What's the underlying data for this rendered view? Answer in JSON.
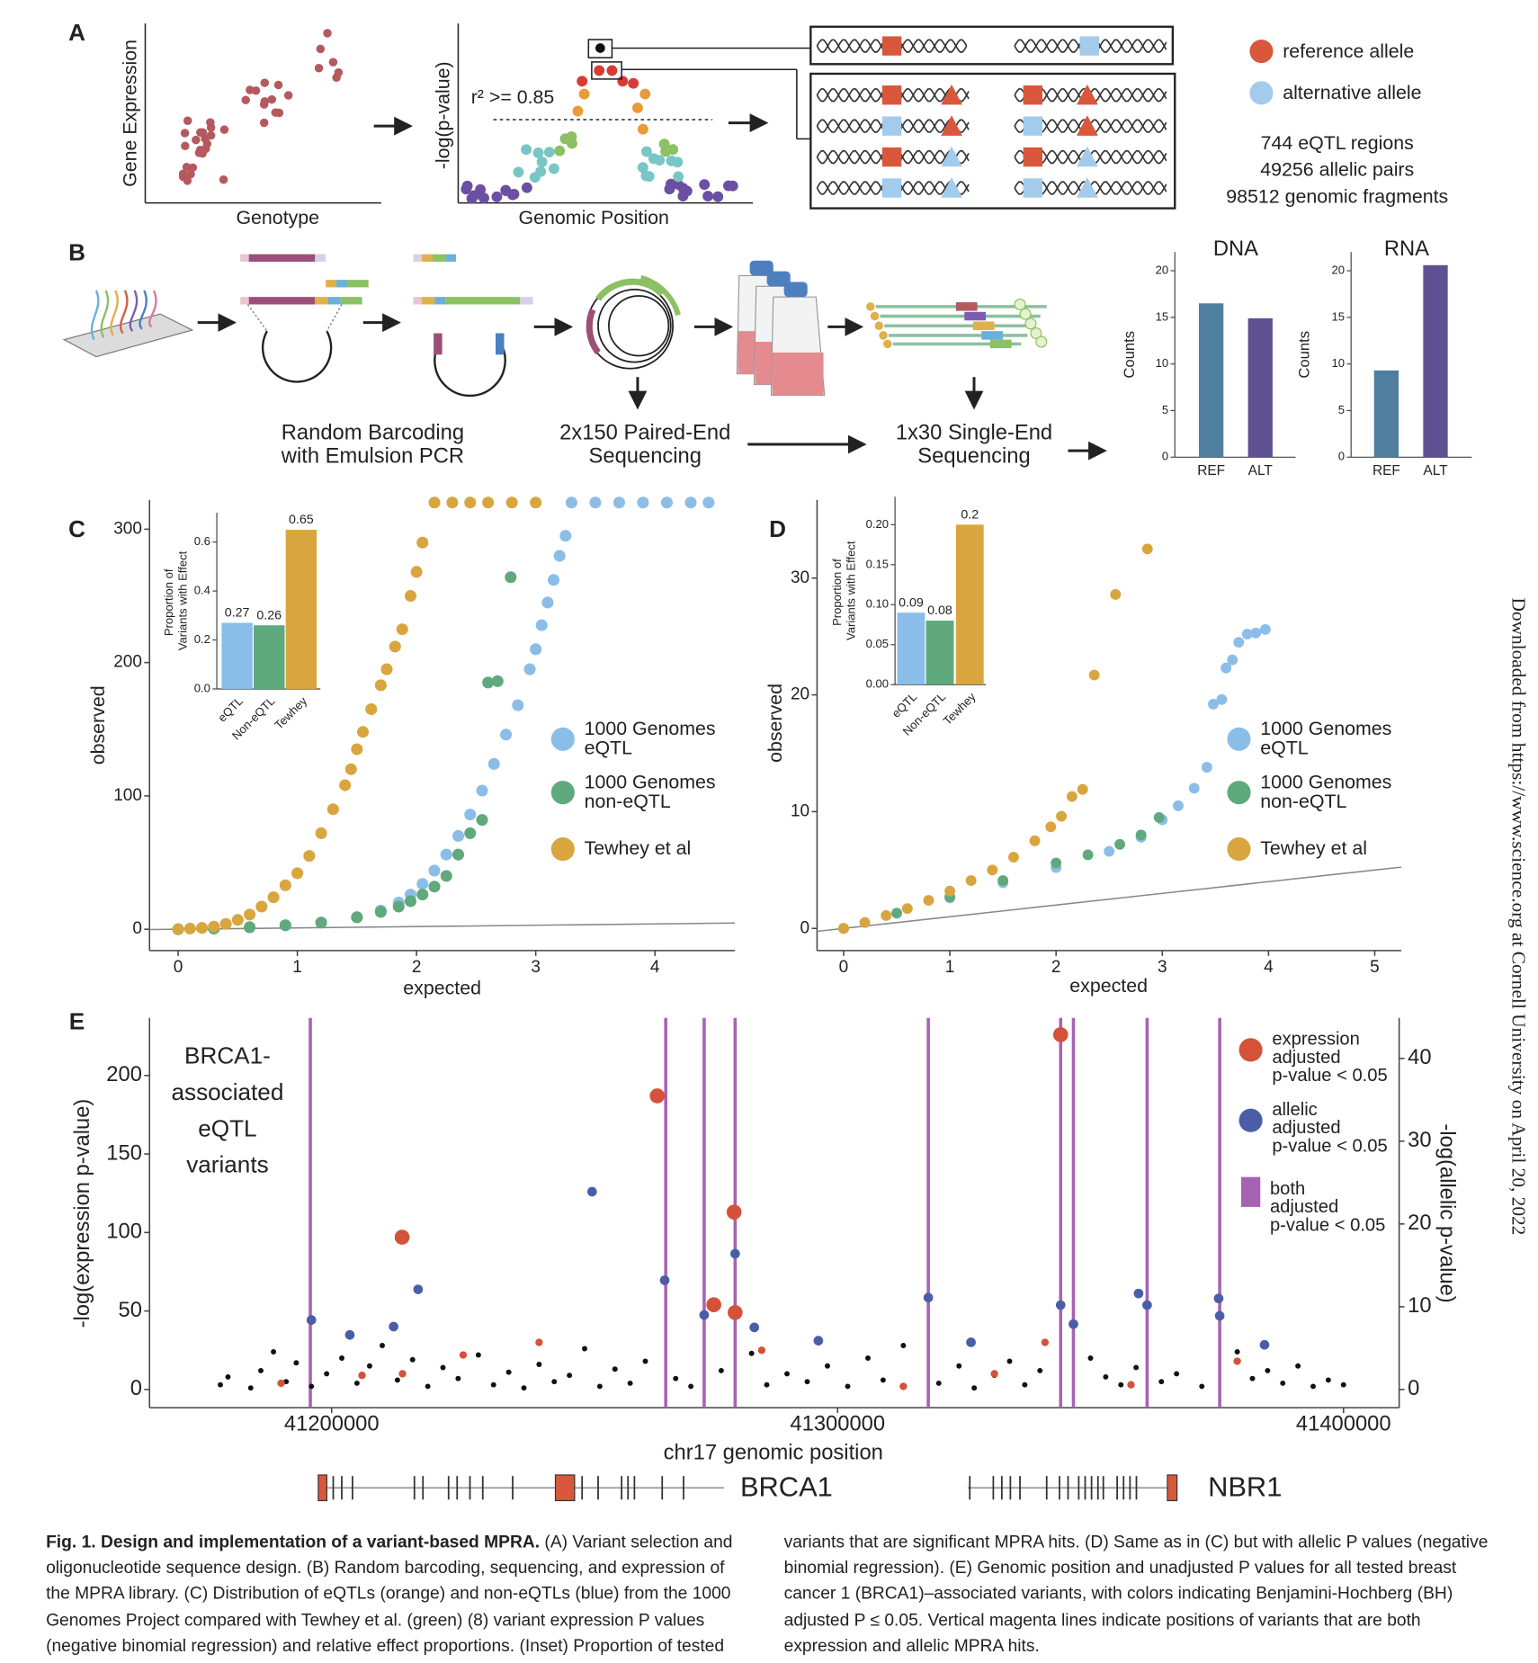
{
  "figure": {
    "panel_labels": [
      "A",
      "B",
      "C",
      "D",
      "E"
    ],
    "panel_a": {
      "scatter_x_label": "Genotype",
      "scatter_y_label": "Gene Expression",
      "manhattan_x_label": "Genomic Position",
      "manhattan_y_label": "-log(p-value)",
      "threshold_label": "r² >= 0.85",
      "legend": [
        "reference allele",
        "alternative allele"
      ],
      "stats": [
        "744 eQTL regions",
        "49256 allelic pairs",
        "98512 genomic fragments"
      ]
    },
    "panel_b": {
      "steps": [
        [
          "Random Barcoding",
          "with Emulsion PCR"
        ],
        [
          "2x150 Paired-End",
          "Sequencing"
        ],
        [
          "1x30 Single-End",
          "Sequencing"
        ]
      ]
    },
    "panel_e": {
      "annotation": [
        "BRCA1-",
        "associated",
        "eQTL",
        "variants"
      ],
      "genes": [
        "BRCA1",
        "NBR1"
      ]
    },
    "caption": {
      "title": "Fig. 1. Design and implementation of a variant-based MPRA.",
      "body": "(A) Variant selection and oligonucleotide sequence design. (B) Random barcoding, sequencing, and expression of the MPRA library. (C) Distribution of eQTLs (orange) and non-eQTLs (blue) from the 1000 Genomes Project compared with Tewhey et al. (green) (8) variant expression P values (negative binomial regression) and relative effect proportions. (Inset) Proportion of tested variants that are significant MPRA hits. (D) Same as in (C) but with allelic P values (negative binomial regression). (E) Genomic position and unadjusted P values for all tested breast cancer 1 (BRCA1)–associated variants, with colors indicating Benjamini-Hochberg (BH) adjusted P ≤ 0.05. Vertical magenta lines indicate positions of variants that are both expression and allelic MPRA hits."
    },
    "download_note": "Downloaded from https://www.science.org at Cornell University on April 20, 2022"
  },
  "chart_data": [
    {
      "type": "bar",
      "title": "DNA",
      "y_label": "Counts",
      "categories": [
        "REF",
        "ALT"
      ],
      "values": [
        16.5,
        14.9
      ],
      "colors": [
        "#4f7f9e",
        "#5f5191"
      ],
      "ylim": [
        0,
        22
      ],
      "yticks": [
        0,
        5,
        10,
        15,
        20
      ],
      "data_labels": false
    },
    {
      "type": "bar",
      "title": "RNA",
      "y_label": "Counts",
      "categories": [
        "REF",
        "ALT"
      ],
      "values": [
        9.3,
        20.6
      ],
      "colors": [
        "#4f7f9e",
        "#5f5191"
      ],
      "ylim": [
        0,
        22
      ],
      "yticks": [
        0,
        5,
        10,
        15,
        20
      ],
      "data_labels": false
    },
    {
      "type": "scatter",
      "x_label": "expected",
      "y_label": "observed",
      "xlim": [
        -0.24,
        4.67
      ],
      "ylim": [
        -16,
        322
      ],
      "xticks": [
        0,
        1,
        2,
        3,
        4
      ],
      "yticks": [
        0,
        100,
        200,
        300
      ],
      "diagonal": true,
      "legend": "right",
      "series": [
        {
          "name": "1000 Genomes eQTL",
          "color": "#8bbde9",
          "x": [
            0,
            0.3,
            0.6,
            0.9,
            1.2,
            1.5,
            1.7,
            1.85,
            1.95,
            2.05,
            2.15,
            2.25,
            2.35,
            2.45,
            2.55,
            2.65,
            2.75,
            2.85,
            2.95,
            3.0,
            3.05,
            3.1,
            3.15,
            3.2,
            3.25,
            3.3,
            3.5,
            3.7,
            3.9,
            4.1,
            4.3,
            4.45
          ],
          "values": [
            0,
            0.5,
            1.5,
            3,
            5,
            9,
            14,
            20,
            26,
            34,
            44,
            56,
            70,
            86,
            104,
            124,
            146,
            168,
            195,
            210,
            228,
            245,
            262,
            280,
            295,
            320,
            320,
            320,
            320,
            320,
            320,
            320
          ]
        },
        {
          "name": "1000 Genomes non-eQTL",
          "color": "#5fa97c",
          "x": [
            0,
            0.3,
            0.6,
            0.9,
            1.2,
            1.5,
            1.7,
            1.85,
            1.95,
            2.05,
            2.15,
            2.25,
            2.35,
            2.45,
            2.55,
            2.6,
            2.68,
            2.79
          ],
          "values": [
            0,
            0.5,
            1.5,
            3,
            5,
            9,
            13,
            17,
            21,
            26,
            32,
            40,
            56,
            72,
            82,
            185,
            186,
            264
          ]
        },
        {
          "name": "Tewhey et al",
          "color": "#d8a53f",
          "x": [
            0,
            0.1,
            0.2,
            0.3,
            0.4,
            0.5,
            0.6,
            0.7,
            0.8,
            0.9,
            1.0,
            1.1,
            1.2,
            1.3,
            1.4,
            1.45,
            1.5,
            1.55,
            1.62,
            1.7,
            1.75,
            1.82,
            1.88,
            1.95,
            2.0,
            2.05,
            2.15,
            2.3,
            2.45,
            2.6,
            2.8,
            3.0
          ],
          "values": [
            0,
            0.5,
            1,
            2,
            4,
            7,
            11,
            17,
            24,
            33,
            42,
            55,
            72,
            90,
            108,
            120,
            135,
            148,
            165,
            183,
            195,
            212,
            225,
            250,
            268,
            290,
            320,
            320,
            320,
            320,
            320,
            320
          ]
        }
      ]
    },
    {
      "type": "bar",
      "y_label": "Proportion of Variants with Effect",
      "categories": [
        "eQTL",
        "Non-eQTL",
        "Tewhey"
      ],
      "values": [
        0.27,
        0.26,
        0.65
      ],
      "colors": [
        "#8bbde9",
        "#5fa97c",
        "#d8a53f"
      ],
      "ylim": [
        0,
        0.72
      ],
      "yticks": [
        {
          "value": 0,
          "label": "0.0"
        },
        0.2,
        0.4,
        0.6
      ],
      "data_labels": true
    },
    {
      "type": "scatter",
      "x_label": "expected",
      "y_label": "observed",
      "xlim": [
        -0.25,
        5.25
      ],
      "ylim": [
        -1.9,
        36.7
      ],
      "xticks": [
        0,
        1,
        2,
        3,
        4,
        5
      ],
      "yticks": [
        0,
        10,
        20,
        30
      ],
      "diagonal": true,
      "legend": "right",
      "series": [
        {
          "name": "1000 Genomes eQTL",
          "color": "#8bbde9",
          "x": [
            0,
            0.5,
            1.0,
            1.5,
            2.0,
            2.5,
            2.8,
            3.0,
            3.15,
            3.3,
            3.42,
            3.48,
            3.56,
            3.6,
            3.66,
            3.72,
            3.8,
            3.88,
            3.97
          ],
          "values": [
            0,
            1.3,
            2.6,
            3.9,
            5.2,
            6.6,
            7.8,
            9.3,
            10.5,
            12,
            13.8,
            19.2,
            19.6,
            22.3,
            23.0,
            24.5,
            25.2,
            25.3,
            25.6
          ]
        },
        {
          "name": "1000 Genomes non-eQTL",
          "color": "#5fa97c",
          "x": [
            0,
            0.5,
            1.0,
            1.5,
            2.0,
            2.3,
            2.6,
            2.8,
            2.97
          ],
          "values": [
            0,
            1.3,
            2.7,
            4.1,
            5.6,
            6.3,
            7.2,
            8.0,
            9.5
          ]
        },
        {
          "name": "Tewhey et al",
          "color": "#d8a53f",
          "x": [
            0,
            0.2,
            0.4,
            0.6,
            0.8,
            1.0,
            1.2,
            1.4,
            1.6,
            1.8,
            1.95,
            2.05,
            2.15,
            2.25,
            2.36,
            2.56,
            2.86
          ],
          "values": [
            0,
            0.5,
            1.1,
            1.7,
            2.4,
            3.2,
            4.1,
            5.0,
            6.1,
            7.5,
            8.7,
            9.6,
            11.3,
            11.9,
            21.7,
            28.6,
            32.5
          ]
        }
      ]
    },
    {
      "type": "bar",
      "y_label": "Proportion of Variants with Effect",
      "categories": [
        "eQTL",
        "Non-eQTL",
        "Tewhey"
      ],
      "values": [
        0.09,
        0.08,
        0.2
      ],
      "colors": [
        "#8bbde9",
        "#5fa97c",
        "#d8a53f"
      ],
      "ylim": [
        0,
        0.235
      ],
      "yticks": [
        {
          "value": 0,
          "label": "0.00"
        },
        0.05,
        {
          "value": 0.1,
          "label": "0.10"
        },
        {
          "value": 0.15,
          "label": "0.15"
        },
        {
          "value": 0.2,
          "label": "0.20"
        }
      ],
      "data_labels": true
    },
    {
      "type": "scatter",
      "x_label": "chr17 genomic position",
      "y_label": "-log(expression p-value)",
      "y2_label": "-log(allelic p-value)",
      "xlim": [
        41164000,
        41411000
      ],
      "ylim": [
        -11.6,
        236.7
      ],
      "y2lim": [
        -2.2,
        44.9
      ],
      "xticks": [
        41200000,
        41300000,
        41400000
      ],
      "yticks": [
        0,
        50,
        100,
        150,
        200
      ],
      "y2ticks": [
        0,
        10,
        20,
        30,
        40
      ],
      "diagonal": false,
      "legend": "top right",
      "vlines": {
        "name": "both adjusted p-value < 0.05",
        "color": "#a763b3",
        "x": [
          41195780,
          41266034,
          41273630,
          41279750,
          41317930,
          41344090,
          41346620,
          41361180,
          41375530
        ]
      },
      "series": [
        {
          "color": "#111111",
          "x": [
            41178000,
            41179500,
            41184000,
            41186000,
            41188500,
            41191000,
            41193000,
            41196000,
            41199000,
            41202000,
            41205000,
            41207500,
            41210000,
            41213000,
            41216000,
            41219000,
            41222000,
            41225000,
            41229000,
            41232000,
            41235000,
            41238000,
            41241000,
            41244000,
            41247000,
            41250000,
            41253000,
            41256000,
            41259000,
            41262000,
            41268000,
            41271000,
            41277000,
            41283000,
            41286000,
            41290000,
            41294000,
            41298000,
            41302000,
            41306000,
            41309000,
            41313000,
            41320000,
            41324000,
            41327000,
            41331000,
            41334000,
            41337000,
            41340000,
            41350000,
            41353000,
            41356000,
            41359000,
            41364000,
            41367000,
            41372000,
            41379000,
            41382000,
            41385000,
            41388000,
            41391000,
            41394000,
            41397000,
            41400000
          ],
          "values": [
            3,
            8,
            1,
            12,
            24,
            5,
            17,
            2,
            10,
            20,
            4,
            15,
            28,
            6,
            19,
            2,
            14,
            7,
            22,
            3,
            11,
            1,
            16,
            5,
            9,
            26,
            2,
            13,
            4,
            18,
            7,
            2,
            12,
            23,
            3,
            10,
            5,
            15,
            2,
            20,
            6,
            28,
            4,
            15,
            1,
            9,
            18,
            3,
            12,
            20,
            8,
            3,
            14,
            5,
            10,
            2,
            24,
            7,
            12,
            4,
            15,
            2,
            6,
            3
          ]
        },
        {
          "name": "expression adjusted p-value < 0.05",
          "color": "#d4513a",
          "x": [
            41190000,
            41206000,
            41213920,
            41214000,
            41226000,
            41241000,
            41264350,
            41275530,
            41279540,
            41279750,
            41285000,
            41313000,
            41331000,
            41341000,
            41344090,
            41358000,
            41379000
          ],
          "values": [
            4,
            9,
            97,
            10,
            22,
            30,
            187,
            54,
            113,
            49,
            25,
            2,
            10,
            30,
            226,
            3,
            18
          ]
        },
        {
          "name": "allelic adjusted p-value < 0.05",
          "color": "#4a5ea8",
          "axis": "y2",
          "x": [
            41195990,
            41203590,
            41212240,
            41217090,
            41251480,
            41265820,
            41273630,
            41279750,
            41283540,
            41296200,
            41317930,
            41326370,
            41344090,
            41346620,
            41359490,
            41361180,
            41375320,
            41375530,
            41384390
          ],
          "values": [
            8.4,
            6.6,
            7.6,
            12.1,
            23.9,
            13.2,
            9.0,
            16.4,
            7.5,
            5.9,
            11.1,
            5.7,
            10.2,
            7.9,
            11.6,
            10.2,
            11.0,
            8.9,
            5.4
          ]
        }
      ]
    }
  ]
}
